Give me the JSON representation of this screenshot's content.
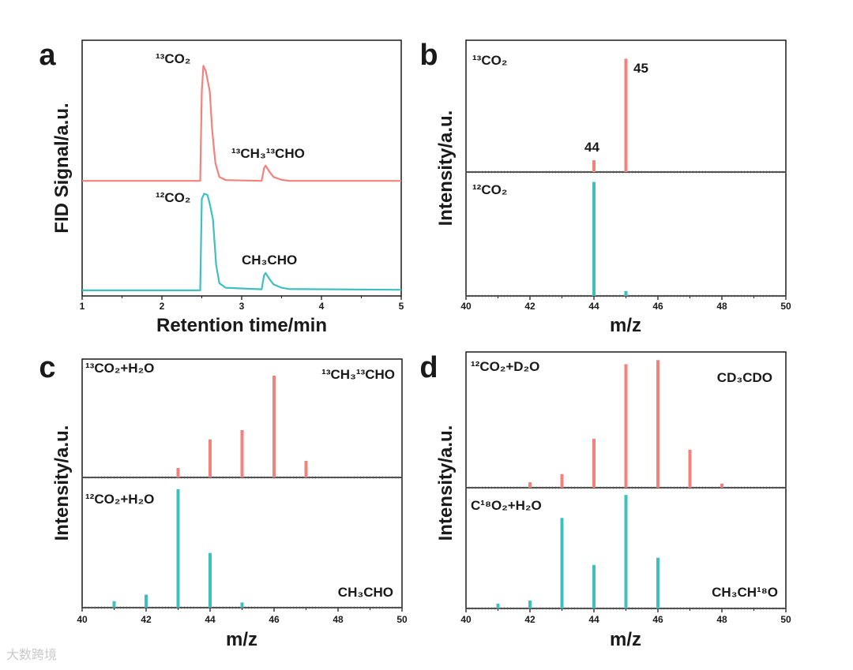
{
  "colors": {
    "red": "#F3827C",
    "teal": "#3FBFC0",
    "axis": "#1a1a1a"
  },
  "watermark": "大数跨境",
  "chart_data": [
    {
      "panel": "a",
      "type": "line",
      "xlabel": "Retention time/min",
      "ylabel": "FID Signal/a.u.",
      "xlim": [
        1,
        5
      ],
      "ylim": [
        0,
        100
      ],
      "xticks": [
        1,
        2,
        3,
        4,
        5
      ],
      "series": [
        {
          "name": "13CO2 trace",
          "color": "red",
          "x": [
            1,
            2.48,
            2.5,
            2.52,
            2.55,
            2.6,
            2.63,
            2.67,
            2.72,
            2.8,
            3.25,
            3.28,
            3.3,
            3.35,
            3.4,
            3.5,
            3.6,
            5
          ],
          "y": [
            45,
            45,
            80,
            90,
            88,
            80,
            65,
            52,
            46.5,
            45.3,
            45,
            50,
            51,
            48.5,
            46.5,
            45.4,
            45,
            45
          ]
        },
        {
          "name": "12CO2 trace",
          "color": "teal",
          "x": [
            1,
            2.48,
            2.5,
            2.53,
            2.57,
            2.6,
            2.64,
            2.68,
            2.72,
            2.8,
            3.25,
            3.28,
            3.3,
            3.35,
            3.4,
            3.5,
            3.6,
            5
          ],
          "y": [
            2.2,
            2.2,
            38,
            40,
            39.5,
            36,
            30,
            12,
            5,
            3.2,
            2.6,
            8,
            9,
            6.5,
            4.5,
            3.2,
            2.7,
            2.4
          ]
        }
      ],
      "annotations": [
        "¹³CO₂",
        "¹³CH₃¹³CHO",
        "¹²CO₂",
        "CH₃CHO"
      ]
    },
    {
      "panel": "b",
      "type": "bar",
      "xlabel": "m/z",
      "ylabel": "Intensity/a.u.",
      "xlim": [
        40,
        50
      ],
      "xticks": [
        40,
        42,
        44,
        46,
        48,
        50
      ],
      "series": [
        {
          "name": "¹³CO₂",
          "color": "red",
          "x": [
            44,
            45
          ],
          "values": [
            0.09,
            0.86
          ]
        },
        {
          "name": "¹²CO₂",
          "color": "teal",
          "x": [
            44,
            45
          ],
          "values": [
            0.92,
            0.04
          ]
        }
      ],
      "annotations": [
        "¹³CO₂",
        "45",
        "44",
        "¹²CO₂"
      ]
    },
    {
      "panel": "c",
      "type": "bar",
      "xlabel": "m/z",
      "ylabel": "Intensity/a.u.",
      "xlim": [
        40,
        50
      ],
      "xticks": [
        40,
        42,
        44,
        46,
        48,
        50
      ],
      "series": [
        {
          "name": "¹³CO₂+H₂O",
          "color": "red",
          "x": [
            43,
            44,
            45,
            46,
            47
          ],
          "values": [
            0.08,
            0.32,
            0.4,
            0.86,
            0.14
          ]
        },
        {
          "name": "¹²CO₂+H₂O",
          "color": "teal",
          "x": [
            41,
            42,
            43,
            44,
            45
          ],
          "values": [
            0.05,
            0.1,
            0.91,
            0.42,
            0.04
          ]
        }
      ],
      "annotations": [
        "¹³CO₂+H₂O",
        "¹³CH₃¹³CHO",
        "¹²CO₂+H₂O",
        "CH₃CHO"
      ]
    },
    {
      "panel": "d",
      "type": "bar",
      "xlabel": "m/z",
      "ylabel": "Intensity/a.u.",
      "xlim": [
        40,
        50
      ],
      "xticks": [
        40,
        42,
        44,
        46,
        48,
        50
      ],
      "series": [
        {
          "name": "¹²CO₂+D₂O",
          "color": "red",
          "x": [
            42,
            43,
            44,
            45,
            46,
            47,
            48
          ],
          "values": [
            0.04,
            0.1,
            0.36,
            0.91,
            0.94,
            0.28,
            0.03
          ]
        },
        {
          "name": "C¹⁸O₂+H₂O",
          "color": "teal",
          "x": [
            41,
            42,
            43,
            44,
            45,
            46
          ],
          "values": [
            0.04,
            0.065,
            0.75,
            0.36,
            0.94,
            0.42
          ]
        }
      ],
      "annotations": [
        "¹²CO₂+D₂O",
        "CD₃CDO",
        "C¹⁸O₂+H₂O",
        "CH₃CH¹⁸O"
      ]
    }
  ]
}
